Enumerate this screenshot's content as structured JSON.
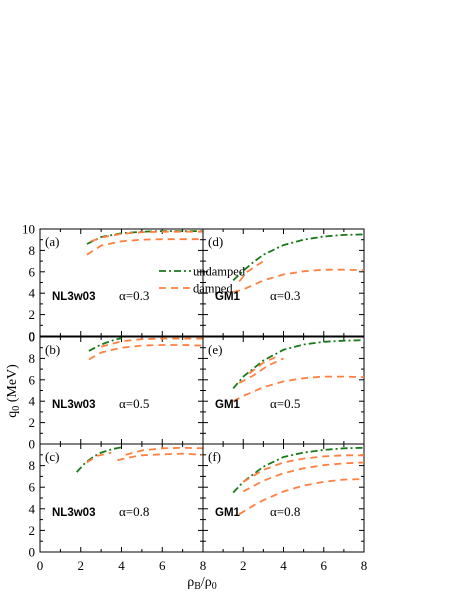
{
  "chart_data": {
    "type": "line",
    "x_axis": {
      "label_base": "ρ",
      "label_num_sub": "B",
      "label_slash": "/ρ",
      "label_den_sub": "0",
      "xlim": [
        0,
        8
      ],
      "ticks": [
        "0",
        "2",
        "4",
        "6",
        "8"
      ]
    },
    "y_axis": {
      "label_base": "q",
      "label_sub": "0",
      "label_unit": " (MeV)",
      "ylim": [
        0,
        10
      ],
      "ticks_top": [
        "0",
        "2",
        "4",
        "6",
        "8",
        "10"
      ],
      "ticks_lower": [
        "2",
        "4",
        "6",
        "8"
      ]
    },
    "legend": {
      "placement": "panel (d), upper-left",
      "entries": [
        {
          "label": "undamped",
          "color": "#1a7a1a",
          "style": "dash-dot"
        },
        {
          "label": "damped",
          "color": "#ff7f3f",
          "style": "dashed"
        }
      ]
    },
    "panels": [
      {
        "letter": "(a)",
        "model": "NL3w03",
        "alpha": "α=0.3",
        "col": 0,
        "row": 0,
        "series": [
          {
            "kind": "undamped",
            "points": [
              [
                2.3,
                8.6
              ],
              [
                3.0,
                9.25
              ],
              [
                4.0,
                9.6
              ],
              [
                5.0,
                9.75
              ],
              [
                6.0,
                9.8
              ],
              [
                7.0,
                9.8
              ],
              [
                8.0,
                9.8
              ]
            ]
          },
          {
            "kind": "damped",
            "points": [
              [
                2.3,
                7.6
              ],
              [
                3.0,
                8.45
              ],
              [
                4.0,
                8.85
              ],
              [
                5.0,
                9.0
              ],
              [
                6.0,
                9.05
              ],
              [
                7.0,
                9.05
              ],
              [
                8.0,
                9.05
              ]
            ]
          },
          {
            "kind": "damped",
            "points": [
              [
                2.5,
                8.85
              ],
              [
                3.0,
                9.2
              ],
              [
                4.0,
                9.55
              ],
              [
                5.0,
                9.7
              ],
              [
                6.0,
                9.75
              ],
              [
                7.0,
                9.75
              ],
              [
                8.0,
                9.75
              ]
            ]
          }
        ]
      },
      {
        "letter": "(d)",
        "model": "GM1",
        "alpha": "α=0.3",
        "col": 1,
        "row": 0,
        "series": [
          {
            "kind": "undamped",
            "points": [
              [
                1.5,
                5.2
              ],
              [
                2.0,
                6.1
              ],
              [
                2.5,
                6.9
              ],
              [
                3.0,
                7.6
              ],
              [
                4.0,
                8.5
              ],
              [
                5.0,
                9.0
              ],
              [
                6.0,
                9.3
              ],
              [
                7.0,
                9.45
              ],
              [
                8.0,
                9.5
              ]
            ]
          },
          {
            "kind": "damped",
            "points": [
              [
                1.5,
                4.1
              ],
              [
                2.0,
                4.35
              ],
              [
                3.0,
                5.2
              ],
              [
                4.0,
                5.75
              ],
              [
                5.0,
                6.05
              ],
              [
                6.0,
                6.2
              ],
              [
                7.0,
                6.2
              ],
              [
                8.0,
                6.15
              ]
            ]
          },
          {
            "kind": "damped",
            "points": [
              [
                1.8,
                5.1
              ],
              [
                2.2,
                6.0
              ],
              [
                2.6,
                6.5
              ],
              [
                3.0,
                7.0
              ]
            ]
          }
        ]
      },
      {
        "letter": "(b)",
        "model": "NL3w03",
        "alpha": "α=0.5",
        "col": 0,
        "row": 1,
        "series": [
          {
            "kind": "undamped",
            "points": [
              [
                2.4,
                8.7
              ],
              [
                3.0,
                9.3
              ],
              [
                3.6,
                9.7
              ],
              [
                4.0,
                9.9
              ]
            ]
          },
          {
            "kind": "damped",
            "points": [
              [
                2.4,
                7.9
              ],
              [
                3.0,
                8.55
              ],
              [
                4.0,
                9.0
              ],
              [
                5.0,
                9.2
              ],
              [
                6.0,
                9.25
              ],
              [
                7.0,
                9.25
              ],
              [
                8.0,
                9.2
              ]
            ]
          },
          {
            "kind": "damped",
            "points": [
              [
                3.0,
                9.1
              ],
              [
                4.0,
                9.6
              ],
              [
                5.0,
                9.8
              ],
              [
                6.0,
                9.85
              ],
              [
                7.0,
                9.85
              ],
              [
                8.0,
                9.85
              ]
            ]
          }
        ]
      },
      {
        "letter": "(e)",
        "model": "GM1",
        "alpha": "α=0.5",
        "col": 1,
        "row": 1,
        "series": [
          {
            "kind": "undamped",
            "points": [
              [
                1.5,
                5.2
              ],
              [
                2.0,
                6.3
              ],
              [
                3.0,
                7.8
              ],
              [
                4.0,
                8.8
              ],
              [
                5.0,
                9.3
              ],
              [
                6.0,
                9.55
              ],
              [
                7.0,
                9.65
              ],
              [
                8.0,
                9.7
              ]
            ]
          },
          {
            "kind": "damped",
            "points": [
              [
                1.5,
                4.0
              ],
              [
                2.0,
                4.5
              ],
              [
                3.0,
                5.3
              ],
              [
                4.0,
                5.85
              ],
              [
                5.0,
                6.15
              ],
              [
                6.0,
                6.3
              ],
              [
                7.0,
                6.3
              ],
              [
                8.0,
                6.25
              ]
            ]
          },
          {
            "kind": "damped",
            "points": [
              [
                1.8,
                5.7
              ],
              [
                2.5,
                6.4
              ],
              [
                3.2,
                7.3
              ],
              [
                4.0,
                8.0
              ]
            ]
          },
          {
            "kind": "damped",
            "points": [
              [
                2.3,
                6.6
              ],
              [
                3.0,
                7.6
              ],
              [
                3.6,
                8.1
              ]
            ]
          }
        ]
      },
      {
        "letter": "(c)",
        "model": "NL3w03",
        "alpha": "α=0.8",
        "col": 0,
        "row": 2,
        "series": [
          {
            "kind": "undamped",
            "points": [
              [
                1.8,
                7.4
              ],
              [
                2.2,
                8.2
              ],
              [
                2.6,
                8.8
              ],
              [
                3.0,
                9.2
              ],
              [
                3.5,
                9.5
              ],
              [
                4.0,
                9.7
              ]
            ]
          },
          {
            "kind": "damped",
            "points": [
              [
                2.3,
                8.3
              ],
              [
                2.8,
                8.9
              ],
              [
                3.5,
                9.2
              ]
            ]
          },
          {
            "kind": "damped",
            "points": [
              [
                3.8,
                8.5
              ],
              [
                4.5,
                8.8
              ],
              [
                5.0,
                8.95
              ],
              [
                6.0,
                9.05
              ],
              [
                7.0,
                9.1
              ],
              [
                8.0,
                9.0
              ]
            ]
          },
          {
            "kind": "damped",
            "points": [
              [
                4.2,
                9.0
              ],
              [
                5.0,
                9.4
              ],
              [
                6.0,
                9.6
              ],
              [
                7.0,
                9.65
              ],
              [
                8.0,
                9.6
              ]
            ]
          }
        ]
      },
      {
        "letter": "(f)",
        "model": "GM1",
        "alpha": "α=0.8",
        "col": 1,
        "row": 2,
        "series": [
          {
            "kind": "undamped",
            "points": [
              [
                1.5,
                5.5
              ],
              [
                2.0,
                6.5
              ],
              [
                3.0,
                7.9
              ],
              [
                4.0,
                8.8
              ],
              [
                5.0,
                9.2
              ],
              [
                6.0,
                9.45
              ],
              [
                7.0,
                9.6
              ],
              [
                8.0,
                9.65
              ]
            ]
          },
          {
            "kind": "damped",
            "points": [
              [
                1.8,
                3.5
              ],
              [
                2.5,
                4.3
              ],
              [
                3.0,
                4.8
              ],
              [
                4.0,
                5.6
              ],
              [
                5.0,
                6.15
              ],
              [
                6.0,
                6.5
              ],
              [
                7.0,
                6.7
              ],
              [
                8.0,
                6.75
              ]
            ]
          },
          {
            "kind": "damped",
            "points": [
              [
                2.0,
                5.6
              ],
              [
                3.0,
                6.6
              ],
              [
                4.0,
                7.3
              ],
              [
                5.0,
                7.75
              ],
              [
                6.0,
                8.05
              ],
              [
                7.0,
                8.2
              ],
              [
                8.0,
                8.3
              ]
            ]
          },
          {
            "kind": "damped",
            "points": [
              [
                2.0,
                6.5
              ],
              [
                3.0,
                7.6
              ],
              [
                4.0,
                8.3
              ],
              [
                5.0,
                8.65
              ],
              [
                6.0,
                8.85
              ],
              [
                7.0,
                8.95
              ],
              [
                8.0,
                8.95
              ]
            ]
          }
        ]
      }
    ]
  }
}
